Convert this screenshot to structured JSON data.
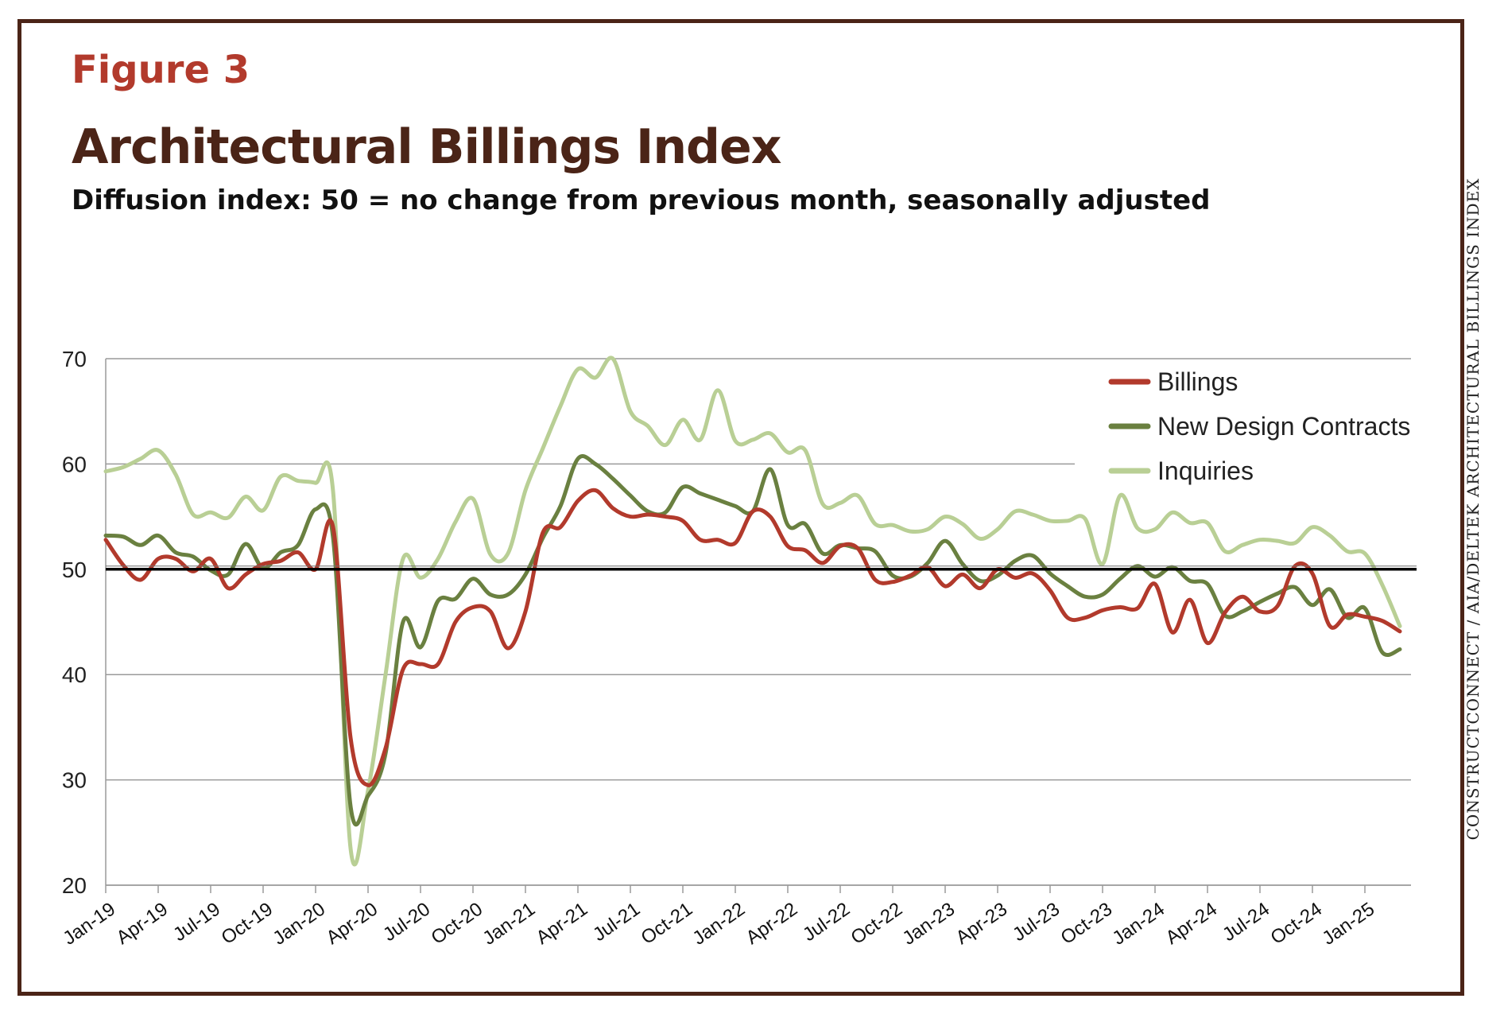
{
  "figure_label": "Figure 3",
  "credit": "CONSTRUCTCONNECT / AIA/DELTEK ARCHITECTURAL BILLINGS INDEX",
  "colors": {
    "billings": "#b23a2c",
    "contracts": "#6a8040",
    "inquiries": "#b9cf95",
    "reference": "#000000",
    "grid": "#9a9a9a",
    "title": "#4b2417"
  },
  "chart_data": {
    "type": "line",
    "title": "Architectural Billings Index",
    "subtitle": "Diffusion index: 50 = no change from previous month, seasonally adjusted",
    "ylim": [
      20,
      70
    ],
    "yticks": [
      20,
      30,
      40,
      50,
      60,
      70
    ],
    "reference_line": 50,
    "grid": true,
    "legend_position": "top-right",
    "x_ticks": [
      "Jan-19",
      "Apr-19",
      "Jul-19",
      "Oct-19",
      "Jan-20",
      "Apr-20",
      "Jul-20",
      "Oct-20",
      "Jan-21",
      "Apr-21",
      "Jul-21",
      "Oct-21",
      "Jan-22",
      "Apr-22",
      "Jul-22",
      "Oct-22",
      "Jan-23",
      "Apr-23",
      "Jul-23",
      "Oct-23",
      "Jan-24",
      "Apr-24",
      "Jul-24",
      "Oct-24",
      "Jan-25"
    ],
    "x": [
      "Jan-19",
      "Feb-19",
      "Mar-19",
      "Apr-19",
      "May-19",
      "Jun-19",
      "Jul-19",
      "Aug-19",
      "Sep-19",
      "Oct-19",
      "Nov-19",
      "Dec-19",
      "Jan-20",
      "Feb-20",
      "Mar-20",
      "Apr-20",
      "May-20",
      "Jun-20",
      "Jul-20",
      "Aug-20",
      "Sep-20",
      "Oct-20",
      "Nov-20",
      "Dec-20",
      "Jan-21",
      "Feb-21",
      "Mar-21",
      "Apr-21",
      "May-21",
      "Jun-21",
      "Jul-21",
      "Aug-21",
      "Sep-21",
      "Oct-21",
      "Nov-21",
      "Dec-21",
      "Jan-22",
      "Feb-22",
      "Mar-22",
      "Apr-22",
      "May-22",
      "Jun-22",
      "Jul-22",
      "Aug-22",
      "Sep-22",
      "Oct-22",
      "Nov-22",
      "Dec-22",
      "Jan-23",
      "Feb-23",
      "Mar-23",
      "Apr-23",
      "May-23",
      "Jun-23",
      "Jul-23",
      "Aug-23",
      "Sep-23",
      "Oct-23",
      "Nov-23",
      "Dec-23",
      "Jan-24",
      "Feb-24",
      "Mar-24",
      "Apr-24",
      "May-24",
      "Jun-24",
      "Jul-24",
      "Aug-24",
      "Sep-24",
      "Oct-24",
      "Nov-24",
      "Dec-24",
      "Jan-25",
      "Feb-25",
      "Mar-25"
    ],
    "series": [
      {
        "name": "Billings",
        "values": [
          52.8,
          50.4,
          49.0,
          51.0,
          51.0,
          49.8,
          51.0,
          48.2,
          49.5,
          50.5,
          50.8,
          51.6,
          50.0,
          54.0,
          34.0,
          29.5,
          33.0,
          40.5,
          41.0,
          41.0,
          45.0,
          46.4,
          46.0,
          42.5,
          46.0,
          53.5,
          54.0,
          56.5,
          57.5,
          55.8,
          55.0,
          55.2,
          55.0,
          54.6,
          52.8,
          52.8,
          52.5,
          55.5,
          55.0,
          52.2,
          51.8,
          50.6,
          52.2,
          52.0,
          49.0,
          48.8,
          49.4,
          50.2,
          48.4,
          49.5,
          48.2,
          50.0,
          49.2,
          49.6,
          48.0,
          45.4,
          45.4,
          46.1,
          46.4,
          46.3,
          48.6,
          44.0,
          47.1,
          43.0,
          45.9,
          47.4,
          46.0,
          46.5,
          50.3,
          49.6,
          44.6,
          45.7,
          45.5,
          45.1,
          44.1
        ]
      },
      {
        "name": "New Design Contracts",
        "values": [
          53.2,
          53.1,
          52.3,
          53.2,
          51.6,
          51.2,
          49.9,
          49.5,
          52.4,
          50.1,
          51.6,
          52.3,
          55.7,
          53.0,
          27.5,
          28.5,
          32.5,
          45.0,
          42.6,
          47.0,
          47.2,
          49.1,
          47.6,
          47.6,
          49.5,
          53.0,
          56.0,
          60.5,
          60.0,
          58.6,
          57.0,
          55.5,
          55.4,
          57.8,
          57.2,
          56.6,
          56.0,
          55.5,
          59.5,
          54.2,
          54.3,
          51.5,
          52.3,
          52.0,
          51.7,
          49.4,
          49.3,
          50.6,
          52.7,
          50.5,
          48.9,
          49.4,
          50.8,
          51.3,
          49.6,
          48.4,
          47.4,
          47.6,
          49.1,
          50.3,
          49.3,
          50.2,
          48.9,
          48.6,
          45.6,
          46.0,
          46.9,
          47.7,
          48.3,
          46.6,
          48.1,
          45.4,
          46.3,
          42.1,
          42.4
        ]
      },
      {
        "name": "Inquiries",
        "values": [
          59.3,
          59.7,
          60.5,
          61.3,
          59.0,
          55.2,
          55.4,
          54.9,
          56.9,
          55.6,
          58.8,
          58.4,
          58.2,
          57.4,
          23.5,
          29.0,
          40.0,
          51.0,
          49.2,
          51.0,
          54.5,
          56.7,
          51.4,
          51.5,
          57.5,
          61.5,
          65.5,
          69.0,
          68.2,
          70.0,
          65.0,
          63.6,
          61.8,
          64.2,
          62.3,
          67.0,
          62.2,
          62.3,
          62.9,
          61.1,
          61.3,
          56.2,
          56.3,
          57.0,
          54.3,
          54.2,
          53.6,
          53.8,
          55.0,
          54.3,
          52.9,
          53.8,
          55.5,
          55.2,
          54.6,
          54.6,
          54.8,
          50.5,
          57.0,
          53.9,
          53.8,
          55.4,
          54.4,
          54.4,
          51.7,
          52.3,
          52.8,
          52.7,
          52.5,
          54.0,
          53.2,
          51.7,
          51.5,
          48.5,
          44.6
        ]
      }
    ]
  }
}
